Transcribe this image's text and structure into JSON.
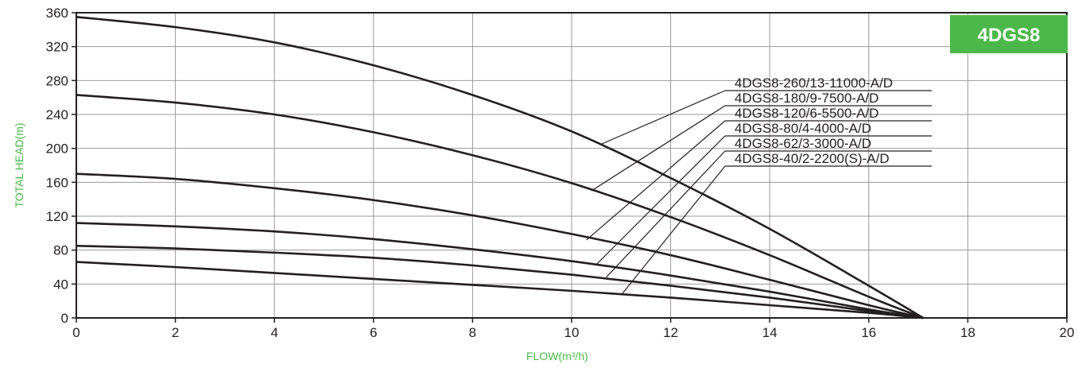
{
  "badge": "4DGS8",
  "colors": {
    "accent": "#4cb84a",
    "curve": "#231f20",
    "grid": "#999999"
  },
  "chart_data": {
    "type": "line",
    "xlabel": "FLOW(m³/h)",
    "ylabel": "TOTAL HEAD(m)",
    "xlim": [
      0,
      20
    ],
    "ylim": [
      0,
      360
    ],
    "x_ticks": [
      0,
      2,
      4,
      6,
      8,
      10,
      12,
      14,
      16,
      18,
      20
    ],
    "y_ticks": [
      0,
      40,
      80,
      120,
      160,
      200,
      240,
      280,
      320,
      360
    ],
    "grid": true,
    "series": [
      {
        "name": "4DGS8-260/13-11000-A/D",
        "x": [
          0,
          2,
          4,
          6,
          8,
          10,
          12,
          14,
          16,
          17.1
        ],
        "y": [
          355,
          343,
          325,
          298,
          263,
          220,
          165,
          105,
          38,
          0
        ]
      },
      {
        "name": "4DGS8-180/9-7500-A/D",
        "x": [
          0,
          2,
          4,
          6,
          8,
          10,
          12,
          14,
          16,
          17.1
        ],
        "y": [
          263,
          254,
          240,
          219,
          192,
          159,
          119,
          74,
          25,
          0
        ]
      },
      {
        "name": "4DGS8-120/6-5500-A/D",
        "x": [
          0,
          2,
          4,
          6,
          8,
          10,
          12,
          14,
          16,
          17.1
        ],
        "y": [
          170,
          164,
          153,
          139,
          121,
          99,
          74,
          45,
          15,
          0
        ]
      },
      {
        "name": "4DGS8-80/4-4000-A/D",
        "x": [
          0,
          2,
          4,
          6,
          8,
          10,
          12,
          14,
          16,
          17.1
        ],
        "y": [
          112,
          108,
          102,
          93,
          81,
          67,
          50,
          31,
          10,
          0
        ]
      },
      {
        "name": "4DGS8-62/3-3000-A/D",
        "x": [
          0,
          2,
          4,
          6,
          8,
          10,
          12,
          14,
          16,
          17.1
        ],
        "y": [
          85,
          82,
          77,
          71,
          62,
          51,
          38,
          24,
          8,
          0
        ]
      },
      {
        "name": "4DGS8-40/2-2200(S)-A/D",
        "x": [
          0,
          2,
          4,
          6,
          8,
          10,
          12,
          14,
          16,
          17.1
        ],
        "y": [
          66,
          60,
          53,
          46,
          39,
          32,
          24,
          15,
          6,
          0
        ]
      }
    ],
    "legend_entries": [
      {
        "label": "4DGS8-260/13-11000-A/D",
        "points_to": [
          10.6,
          205
        ]
      },
      {
        "label": "4DGS8-180/9-7500-A/D",
        "points_to": [
          10.4,
          150
        ]
      },
      {
        "label": "4DGS8-120/6-5500-A/D",
        "points_to": [
          10.3,
          92
        ]
      },
      {
        "label": "4DGS8-80/4-4000-A/D",
        "points_to": [
          10.5,
          63
        ]
      },
      {
        "label": "4DGS8-62/3-3000-A/D",
        "points_to": [
          10.7,
          48
        ]
      },
      {
        "label": "4DGS8-40/2-2200(S)-A/D",
        "points_to": [
          11.0,
          27
        ]
      }
    ]
  }
}
